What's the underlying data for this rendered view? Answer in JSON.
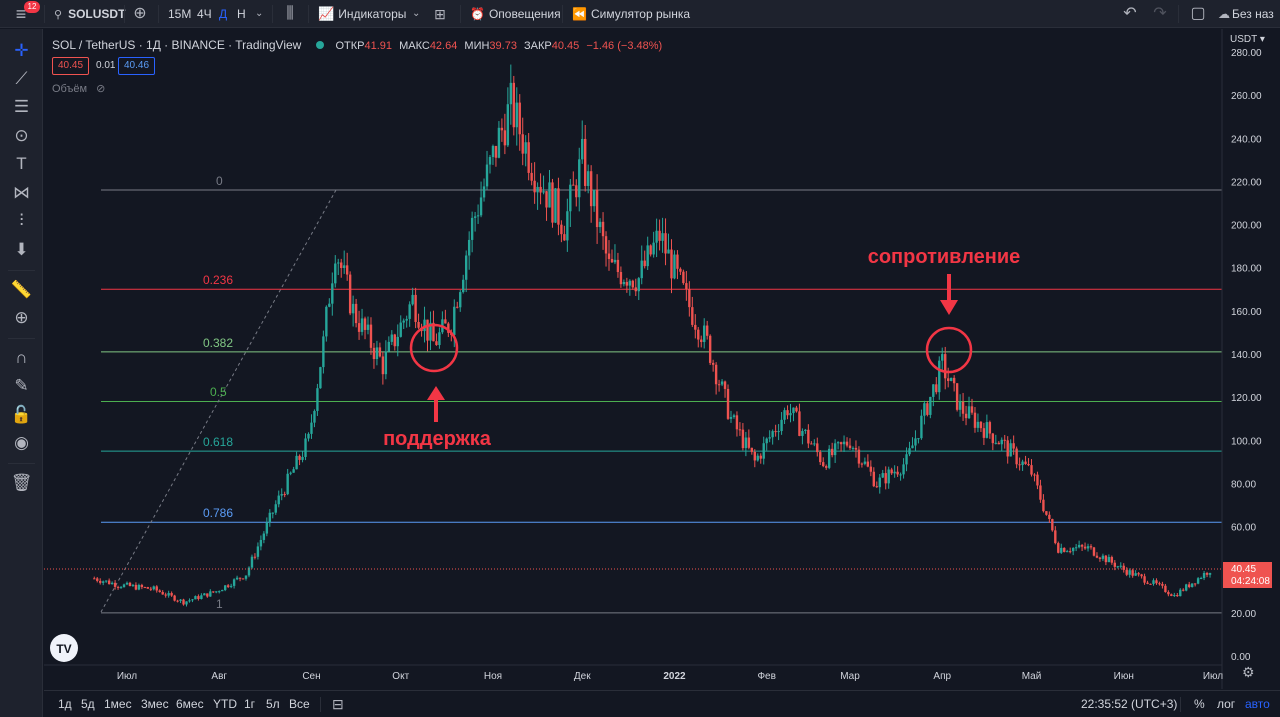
{
  "topbar": {
    "notification_count": "12",
    "symbol": "SOLUSDT",
    "intervals": [
      "15M",
      "4Ч",
      "Д",
      "Н"
    ],
    "active_interval": "Д",
    "indicators_label": "Индикаторы",
    "alerts_label": "Оповещения",
    "replay_label": "Симулятор рынка",
    "layout_label": "Без наз"
  },
  "legend": {
    "title": "SOL / TetherUS · 1Д · BINANCE · TradingView",
    "open_label": "ОТКР",
    "open": "41.91",
    "high_label": "МАКС",
    "high": "42.64",
    "low_label": "МИН",
    "low": "39.73",
    "close_label": "ЗАКР",
    "close": "40.45",
    "change": "−1.46 (−3.48%)",
    "bid": "40.45",
    "spread": "0.01",
    "ask": "40.46",
    "volume_label": "Объём"
  },
  "price_axis": {
    "currency": "USDT",
    "ticks": [
      "280.00",
      "260.00",
      "240.00",
      "220.00",
      "200.00",
      "180.00",
      "160.00",
      "140.00",
      "120.00",
      "100.00",
      "80.00",
      "60.00",
      "40.00",
      "20.00",
      "0.00"
    ],
    "last_price": "40.45",
    "countdown": "04:24:08"
  },
  "time_axis": {
    "labels": [
      "Июл",
      "Авг",
      "Сен",
      "Окт",
      "Ноя",
      "Дек",
      "2022",
      "Фев",
      "Мар",
      "Апр",
      "Май",
      "Июн",
      "Июл"
    ]
  },
  "fib": {
    "levels": [
      {
        "label": "0",
        "price": 216,
        "color": "#787b86"
      },
      {
        "label": "0.236",
        "price": 170,
        "color": "#f23645"
      },
      {
        "label": "0.382",
        "price": 141,
        "color": "#81c784"
      },
      {
        "label": "0.5",
        "price": 118,
        "color": "#4caf50"
      },
      {
        "label": "0.618",
        "price": 95,
        "color": "#26a69a"
      },
      {
        "label": "0.786",
        "price": 62,
        "color": "#5b9cf6"
      },
      {
        "label": "1",
        "price": 20,
        "color": "#787b86"
      }
    ]
  },
  "annotations": {
    "support": "поддержка",
    "resistance": "сопротивление"
  },
  "bottombar": {
    "ranges": [
      "1д",
      "5д",
      "1мес",
      "3мес",
      "6мес",
      "YTD",
      "1г",
      "5л",
      "Все"
    ],
    "clock": "22:35:52 (UTC+3)",
    "percent": "%",
    "log": "лог",
    "auto": "авто"
  },
  "colors": {
    "up": "#26a69a",
    "down": "#ef5350",
    "annotation": "#f23645",
    "accent": "#2962ff"
  },
  "chart_data": {
    "type": "candlestick",
    "title": "SOL / TetherUS · 1Д · BINANCE",
    "x": [
      "2021-07",
      "2021-08",
      "2021-09",
      "2021-10",
      "2021-11",
      "2021-12",
      "2022-01",
      "2022-02",
      "2022-03",
      "2022-04",
      "2022-05",
      "2022-06",
      "2022-07"
    ],
    "ylabel": "USDT",
    "ylim": [
      0,
      280
    ],
    "series": [
      {
        "name": "SOLUSDT",
        "close_path": [
          [
            "2021-06-20",
            36
          ],
          [
            "2021-06-28",
            33
          ],
          [
            "2021-07-10",
            31
          ],
          [
            "2021-07-20",
            25
          ],
          [
            "2021-07-31",
            30
          ],
          [
            "2021-08-10",
            38
          ],
          [
            "2021-08-20",
            70
          ],
          [
            "2021-08-31",
            100
          ],
          [
            "2021-09-05",
            145
          ],
          [
            "2021-09-09",
            190
          ],
          [
            "2021-09-15",
            160
          ],
          [
            "2021-09-25",
            135
          ],
          [
            "2021-10-05",
            165
          ],
          [
            "2021-10-12",
            145
          ],
          [
            "2021-10-18",
            155
          ],
          [
            "2021-10-25",
            200
          ],
          [
            "2021-11-03",
            240
          ],
          [
            "2021-11-07",
            255
          ],
          [
            "2021-11-15",
            225
          ],
          [
            "2021-11-25",
            200
          ],
          [
            "2021-12-01",
            230
          ],
          [
            "2021-12-10",
            180
          ],
          [
            "2021-12-20",
            175
          ],
          [
            "2021-12-27",
            195
          ],
          [
            "2022-01-05",
            165
          ],
          [
            "2022-01-12",
            145
          ],
          [
            "2022-01-20",
            110
          ],
          [
            "2022-01-28",
            90
          ],
          [
            "2022-02-08",
            115
          ],
          [
            "2022-02-20",
            90
          ],
          [
            "2022-03-01",
            100
          ],
          [
            "2022-03-10",
            80
          ],
          [
            "2022-03-20",
            90
          ],
          [
            "2022-04-01",
            135
          ],
          [
            "2022-04-07",
            115
          ],
          [
            "2022-04-20",
            100
          ],
          [
            "2022-05-01",
            85
          ],
          [
            "2022-05-10",
            50
          ],
          [
            "2022-05-20",
            50
          ],
          [
            "2022-06-01",
            40
          ],
          [
            "2022-06-12",
            33
          ],
          [
            "2022-06-18",
            28
          ],
          [
            "2022-06-30",
            40
          ]
        ]
      }
    ],
    "last": 40.45,
    "grid": false
  }
}
